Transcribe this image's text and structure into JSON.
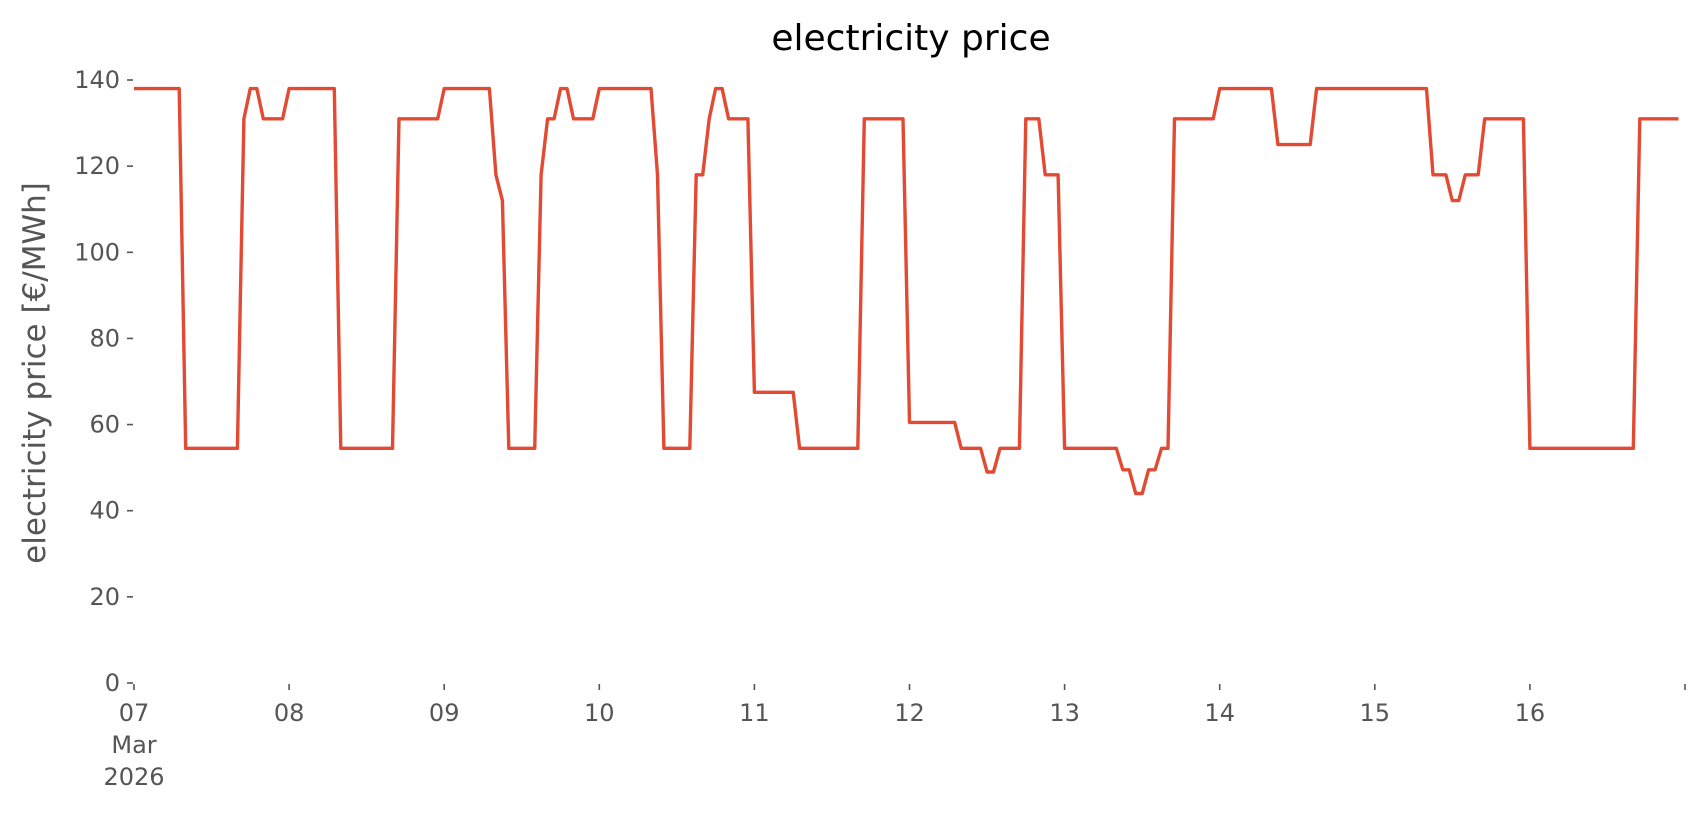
{
  "chart_data": {
    "type": "line",
    "title": "electricity price",
    "xlabel": "",
    "ylabel": "electricity price [€/MWh]",
    "ylim": [
      0,
      140
    ],
    "xlim": [
      "2026-03-07 00:00",
      "2026-03-16 23:00"
    ],
    "grid": false,
    "y_ticks": [
      0,
      20,
      40,
      60,
      80,
      100,
      120,
      140
    ],
    "x_ticks": [
      {
        "t": "2026-03-07 00:00",
        "label": [
          "07",
          "Mar",
          "2026"
        ]
      },
      {
        "t": "2026-03-08 00:00",
        "label": [
          "08"
        ]
      },
      {
        "t": "2026-03-09 00:00",
        "label": [
          "09"
        ]
      },
      {
        "t": "2026-03-10 00:00",
        "label": [
          "10"
        ]
      },
      {
        "t": "2026-03-11 00:00",
        "label": [
          "11"
        ]
      },
      {
        "t": "2026-03-12 00:00",
        "label": [
          "12"
        ]
      },
      {
        "t": "2026-03-13 00:00",
        "label": [
          "13"
        ]
      },
      {
        "t": "2026-03-14 00:00",
        "label": [
          "14"
        ]
      },
      {
        "t": "2026-03-15 00:00",
        "label": [
          "15"
        ]
      },
      {
        "t": "2026-03-16 00:00",
        "label": [
          "16"
        ]
      },
      {
        "t": "2026-03-17 00:00",
        "label": [
          ""
        ]
      }
    ],
    "series": [
      {
        "name": "",
        "color": "#e24a33",
        "values": [
          [
            "2026-03-07 00:00",
            138
          ],
          [
            "2026-03-07 07:00",
            138
          ],
          [
            "2026-03-07 08:00",
            54.5
          ],
          [
            "2026-03-07 16:00",
            54.5
          ],
          [
            "2026-03-07 17:00",
            131
          ],
          [
            "2026-03-07 18:00",
            138
          ],
          [
            "2026-03-07 19:00",
            138
          ],
          [
            "2026-03-07 20:00",
            131
          ],
          [
            "2026-03-07 23:00",
            131
          ],
          [
            "2026-03-08 00:00",
            138
          ],
          [
            "2026-03-08 07:00",
            138
          ],
          [
            "2026-03-08 08:00",
            54.5
          ],
          [
            "2026-03-08 16:00",
            54.5
          ],
          [
            "2026-03-08 17:00",
            131
          ],
          [
            "2026-03-08 23:00",
            131
          ],
          [
            "2026-03-09 00:00",
            138
          ],
          [
            "2026-03-09 07:00",
            138
          ],
          [
            "2026-03-09 08:00",
            118
          ],
          [
            "2026-03-09 09:00",
            112
          ],
          [
            "2026-03-09 10:00",
            54.5
          ],
          [
            "2026-03-09 14:00",
            54.5
          ],
          [
            "2026-03-09 15:00",
            118
          ],
          [
            "2026-03-09 16:00",
            131
          ],
          [
            "2026-03-09 17:00",
            131
          ],
          [
            "2026-03-09 18:00",
            138
          ],
          [
            "2026-03-09 19:00",
            138
          ],
          [
            "2026-03-09 20:00",
            131
          ],
          [
            "2026-03-09 23:00",
            131
          ],
          [
            "2026-03-10 00:00",
            138
          ],
          [
            "2026-03-10 08:00",
            138
          ],
          [
            "2026-03-10 09:00",
            118
          ],
          [
            "2026-03-10 10:00",
            54.5
          ],
          [
            "2026-03-10 14:00",
            54.5
          ],
          [
            "2026-03-10 15:00",
            118
          ],
          [
            "2026-03-10 16:00",
            118
          ],
          [
            "2026-03-10 17:00",
            131
          ],
          [
            "2026-03-10 18:00",
            138
          ],
          [
            "2026-03-10 19:00",
            138
          ],
          [
            "2026-03-10 20:00",
            131
          ],
          [
            "2026-03-10 23:00",
            131
          ],
          [
            "2026-03-11 00:00",
            67.5
          ],
          [
            "2026-03-11 06:00",
            67.5
          ],
          [
            "2026-03-11 07:00",
            54.5
          ],
          [
            "2026-03-11 16:00",
            54.5
          ],
          [
            "2026-03-11 17:00",
            131
          ],
          [
            "2026-03-11 23:00",
            131
          ],
          [
            "2026-03-12 00:00",
            60.5
          ],
          [
            "2026-03-12 07:00",
            60.5
          ],
          [
            "2026-03-12 08:00",
            54.5
          ],
          [
            "2026-03-12 11:00",
            54.5
          ],
          [
            "2026-03-12 12:00",
            49
          ],
          [
            "2026-03-12 13:00",
            49
          ],
          [
            "2026-03-12 14:00",
            54.5
          ],
          [
            "2026-03-12 17:00",
            54.5
          ],
          [
            "2026-03-12 18:00",
            131
          ],
          [
            "2026-03-12 20:00",
            131
          ],
          [
            "2026-03-12 21:00",
            118
          ],
          [
            "2026-03-12 23:00",
            118
          ],
          [
            "2026-03-13 00:00",
            54.5
          ],
          [
            "2026-03-13 08:00",
            54.5
          ],
          [
            "2026-03-13 09:00",
            49.5
          ],
          [
            "2026-03-13 10:00",
            49.5
          ],
          [
            "2026-03-13 11:00",
            44
          ],
          [
            "2026-03-13 12:00",
            44
          ],
          [
            "2026-03-13 13:00",
            49.5
          ],
          [
            "2026-03-13 14:00",
            49.5
          ],
          [
            "2026-03-13 15:00",
            54.5
          ],
          [
            "2026-03-13 16:00",
            54.5
          ],
          [
            "2026-03-13 17:00",
            131
          ],
          [
            "2026-03-13 23:00",
            131
          ],
          [
            "2026-03-14 00:00",
            138
          ],
          [
            "2026-03-14 08:00",
            138
          ],
          [
            "2026-03-14 09:00",
            125
          ],
          [
            "2026-03-14 14:00",
            125
          ],
          [
            "2026-03-14 15:00",
            138
          ],
          [
            "2026-03-15 08:00",
            138
          ],
          [
            "2026-03-15 09:00",
            118
          ],
          [
            "2026-03-15 11:00",
            118
          ],
          [
            "2026-03-15 12:00",
            112
          ],
          [
            "2026-03-15 13:00",
            112
          ],
          [
            "2026-03-15 14:00",
            118
          ],
          [
            "2026-03-15 16:00",
            118
          ],
          [
            "2026-03-15 17:00",
            131
          ],
          [
            "2026-03-15 23:00",
            131
          ],
          [
            "2026-03-16 00:00",
            54.5
          ],
          [
            "2026-03-16 16:00",
            54.5
          ],
          [
            "2026-03-16 17:00",
            131
          ],
          [
            "2026-03-16 23:00",
            131
          ]
        ]
      }
    ]
  }
}
